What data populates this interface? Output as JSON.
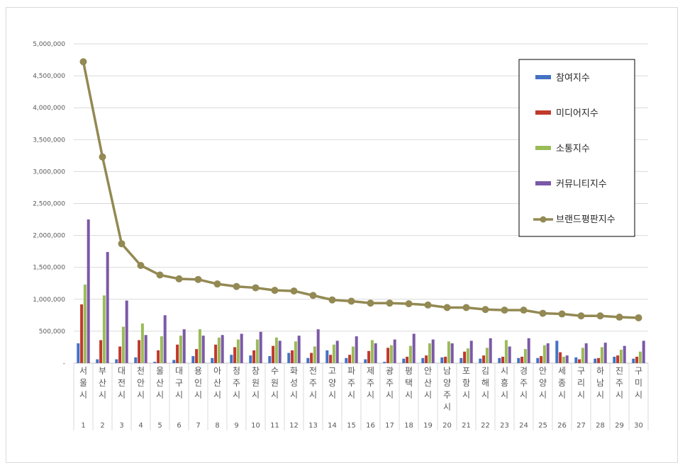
{
  "chart_data": {
    "type": "bar",
    "ylim": [
      0,
      5000000
    ],
    "yticks": [
      "-",
      "500,000",
      "1,000,000",
      "1,500,000",
      "2,000,000",
      "2,500,000",
      "3,000,000",
      "3,500,000",
      "4,000,000",
      "4,500,000",
      "5,000,000"
    ],
    "categories": [
      "서울시",
      "부산시",
      "대전시",
      "천안시",
      "울산시",
      "대구시",
      "용인시",
      "아산시",
      "청주시",
      "창원시",
      "수원시",
      "화성시",
      "전주시",
      "고양시",
      "파주시",
      "제주시",
      "광주시",
      "평택시",
      "안산시",
      "남양주시",
      "포항시",
      "김해시",
      "시흥시",
      "경주시",
      "안양시",
      "세종시",
      "구리시",
      "하남시",
      "진주시",
      "구미시"
    ],
    "ranks": [
      "1",
      "2",
      "3",
      "4",
      "5",
      "6",
      "7",
      "8",
      "9",
      "10",
      "11",
      "12",
      "13",
      "14",
      "15",
      "16",
      "17",
      "18",
      "19",
      "20",
      "21",
      "22",
      "23",
      "24",
      "25",
      "26",
      "27",
      "28",
      "29",
      "30"
    ],
    "series": [
      {
        "name": "참여지수",
        "kind": "bar",
        "color": "#4472c4",
        "values": [
          310000,
          60000,
          60000,
          90000,
          20000,
          50000,
          110000,
          80000,
          130000,
          120000,
          110000,
          160000,
          80000,
          200000,
          80000,
          60000,
          20000,
          70000,
          80000,
          90000,
          80000,
          70000,
          80000,
          80000,
          80000,
          350000,
          90000,
          70000,
          100000,
          70000
        ]
      },
      {
        "name": "미디어지수",
        "kind": "bar",
        "color": "#c0392b",
        "values": [
          920000,
          360000,
          260000,
          360000,
          200000,
          290000,
          220000,
          290000,
          250000,
          200000,
          270000,
          200000,
          160000,
          130000,
          130000,
          190000,
          240000,
          100000,
          120000,
          100000,
          180000,
          120000,
          100000,
          100000,
          110000,
          170000,
          60000,
          80000,
          120000,
          100000
        ]
      },
      {
        "name": "소통지수",
        "kind": "bar",
        "color": "#9bbb59",
        "values": [
          1230000,
          1060000,
          570000,
          620000,
          420000,
          430000,
          530000,
          400000,
          370000,
          370000,
          400000,
          340000,
          260000,
          290000,
          260000,
          360000,
          280000,
          270000,
          310000,
          340000,
          230000,
          240000,
          360000,
          220000,
          280000,
          100000,
          240000,
          250000,
          210000,
          180000
        ]
      },
      {
        "name": "커뮤니티지수",
        "kind": "bar",
        "color": "#7b59a6",
        "values": [
          2250000,
          1740000,
          980000,
          440000,
          750000,
          530000,
          430000,
          440000,
          460000,
          490000,
          350000,
          430000,
          530000,
          350000,
          420000,
          310000,
          370000,
          460000,
          370000,
          310000,
          350000,
          390000,
          260000,
          390000,
          310000,
          120000,
          310000,
          320000,
          270000,
          350000
        ]
      },
      {
        "name": "브랜드평판지수",
        "kind": "line",
        "color": "#938953",
        "values": [
          4720000,
          3230000,
          1870000,
          1530000,
          1380000,
          1320000,
          1310000,
          1240000,
          1200000,
          1180000,
          1140000,
          1130000,
          1060000,
          990000,
          970000,
          940000,
          940000,
          930000,
          910000,
          870000,
          870000,
          840000,
          830000,
          830000,
          780000,
          770000,
          740000,
          740000,
          720000,
          710000
        ]
      }
    ],
    "legend_position": "right",
    "grid": true
  }
}
